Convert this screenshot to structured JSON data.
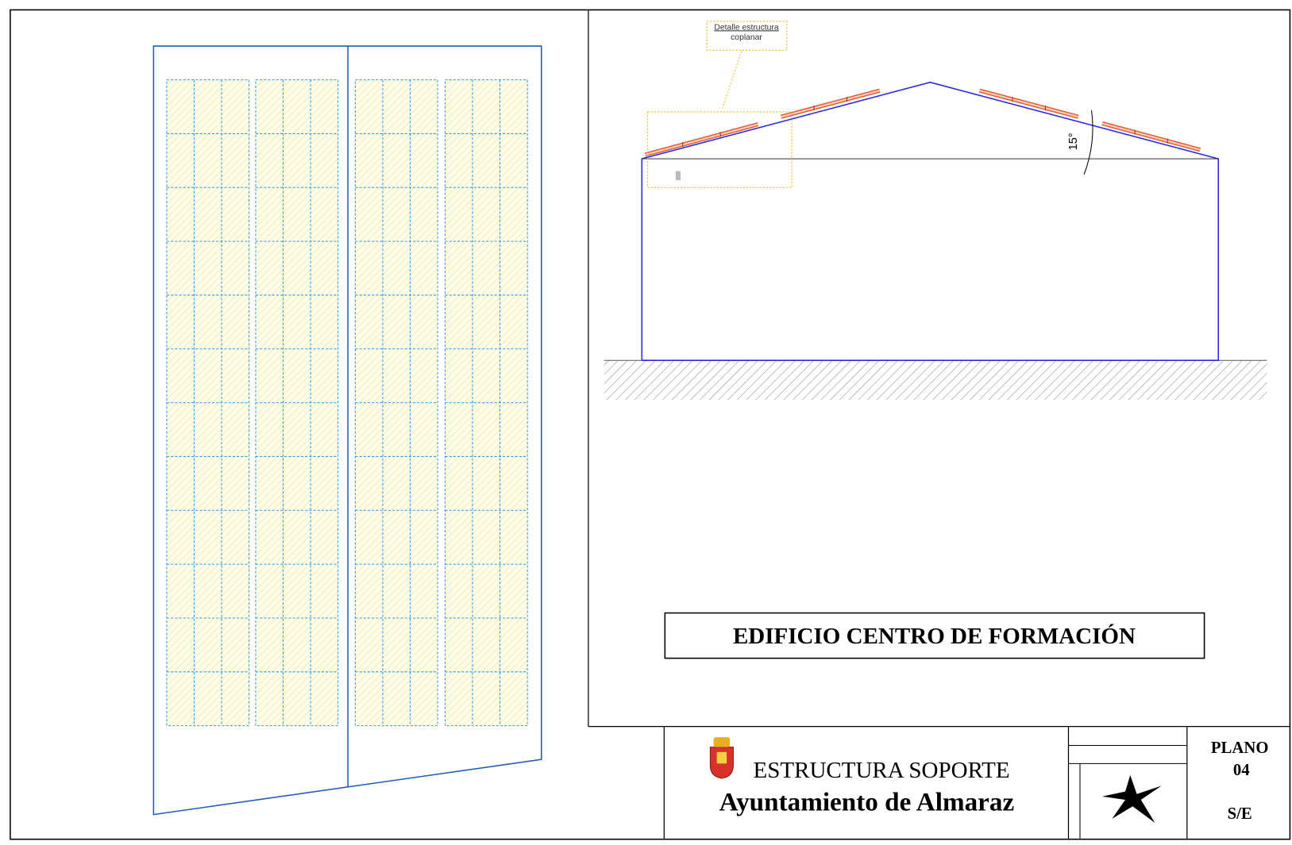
{
  "annotation": {
    "detail_line1": "Detalle estructura",
    "detail_line2": "coplanar",
    "angle": "15°"
  },
  "building": {
    "title": "EDIFICIO CENTRO DE FORMACIÓN"
  },
  "title_block": {
    "subject": "ESTRUCTURA SOPORTE",
    "organization": "Ayuntamiento de Almaraz",
    "plan_label": "PLANO",
    "plan_number": "04",
    "scale": "S/E"
  }
}
